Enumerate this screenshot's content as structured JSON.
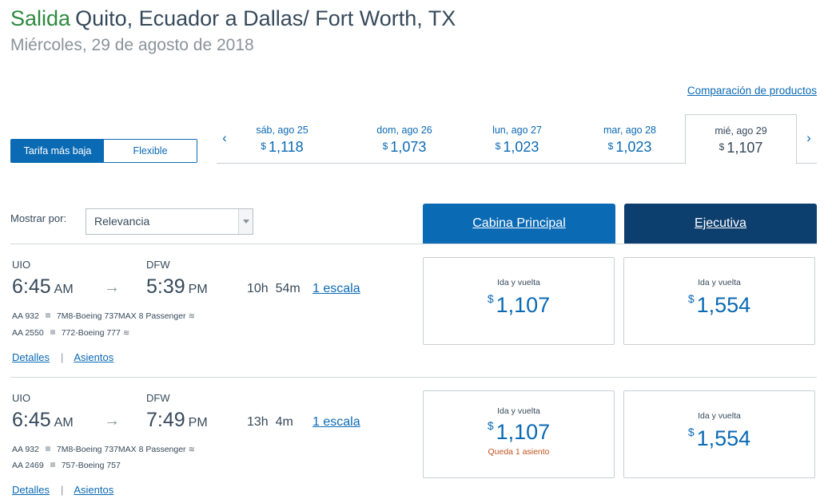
{
  "header": {
    "prefix": "Salida",
    "route": "Quito, Ecuador a Dallas/ Fort Worth, TX",
    "date": "Miércoles, 29 de agosto de 2018"
  },
  "compare_link": "Comparación de productos",
  "fare_toggle": {
    "lowest": "Tarifa más baja",
    "flexible": "Flexible"
  },
  "date_strip": {
    "prev_icon": "chevron-left-icon",
    "next_icon": "chevron-right-icon",
    "prev_glyph": "‹",
    "next_glyph": "›",
    "dates": [
      {
        "day": "sáb, ago 25",
        "currency": "$",
        "price": "1,118"
      },
      {
        "day": "dom, ago 26",
        "currency": "$",
        "price": "1,073"
      },
      {
        "day": "lun, ago 27",
        "currency": "$",
        "price": "1,023"
      },
      {
        "day": "mar, ago 28",
        "currency": "$",
        "price": "1,023"
      },
      {
        "day": "mié, ago 29",
        "currency": "$",
        "price": "1,107"
      }
    ],
    "selected_index": 4
  },
  "sort": {
    "label": "Mostrar por:",
    "value": "Relevancia"
  },
  "cabins": {
    "main": "Cabina Principal",
    "business": "Ejecutiva"
  },
  "flights": [
    {
      "from": "UIO",
      "to": "DFW",
      "dep_time": "6:45",
      "dep_ampm": "AM",
      "arr_time": "5:39",
      "arr_ampm": "PM",
      "duration": "10h  54m",
      "stops": "1 escala",
      "legs": [
        {
          "flight": "AA 932",
          "aircraft": "7M8-Boeing 737MAX 8 Passenger",
          "wifi": true
        },
        {
          "flight": "AA 2550",
          "aircraft": "772-Boeing 777",
          "wifi": true
        }
      ],
      "details": "Detalles",
      "seats": "Asientos",
      "main_fare": {
        "label": "Ida y vuelta",
        "currency": "$",
        "price": "1,107",
        "note": ""
      },
      "business_fare": {
        "label": "Ida y vuelta",
        "currency": "$",
        "price": "1,554",
        "note": ""
      }
    },
    {
      "from": "UIO",
      "to": "DFW",
      "dep_time": "6:45",
      "dep_ampm": "AM",
      "arr_time": "7:49",
      "arr_ampm": "PM",
      "duration": "13h  4m",
      "stops": "1 escala",
      "legs": [
        {
          "flight": "AA 932",
          "aircraft": "7M8-Boeing 737MAX 8 Passenger",
          "wifi": true
        },
        {
          "flight": "AA 2469",
          "aircraft": "757-Boeing 757",
          "wifi": false
        }
      ],
      "details": "Detalles",
      "seats": "Asientos",
      "main_fare": {
        "label": "Ida y vuelta",
        "currency": "$",
        "price": "1,107",
        "note": "Queda 1 asiento"
      },
      "business_fare": {
        "label": "Ida y vuelta",
        "currency": "$",
        "price": "1,554",
        "note": ""
      }
    }
  ],
  "icons": {
    "arrow": "arrow-right-icon",
    "arrow_glyph": "→",
    "wifi": "wifi-icon",
    "wifi_glyph": "≋",
    "aircraft_separator": "aircraft-square-icon",
    "dropdown": "chevron-down-icon"
  },
  "colors": {
    "accent": "#0b6ab4",
    "business": "#0c3e6e",
    "salida": "#2d8a3e",
    "warning": "#c0531f"
  }
}
